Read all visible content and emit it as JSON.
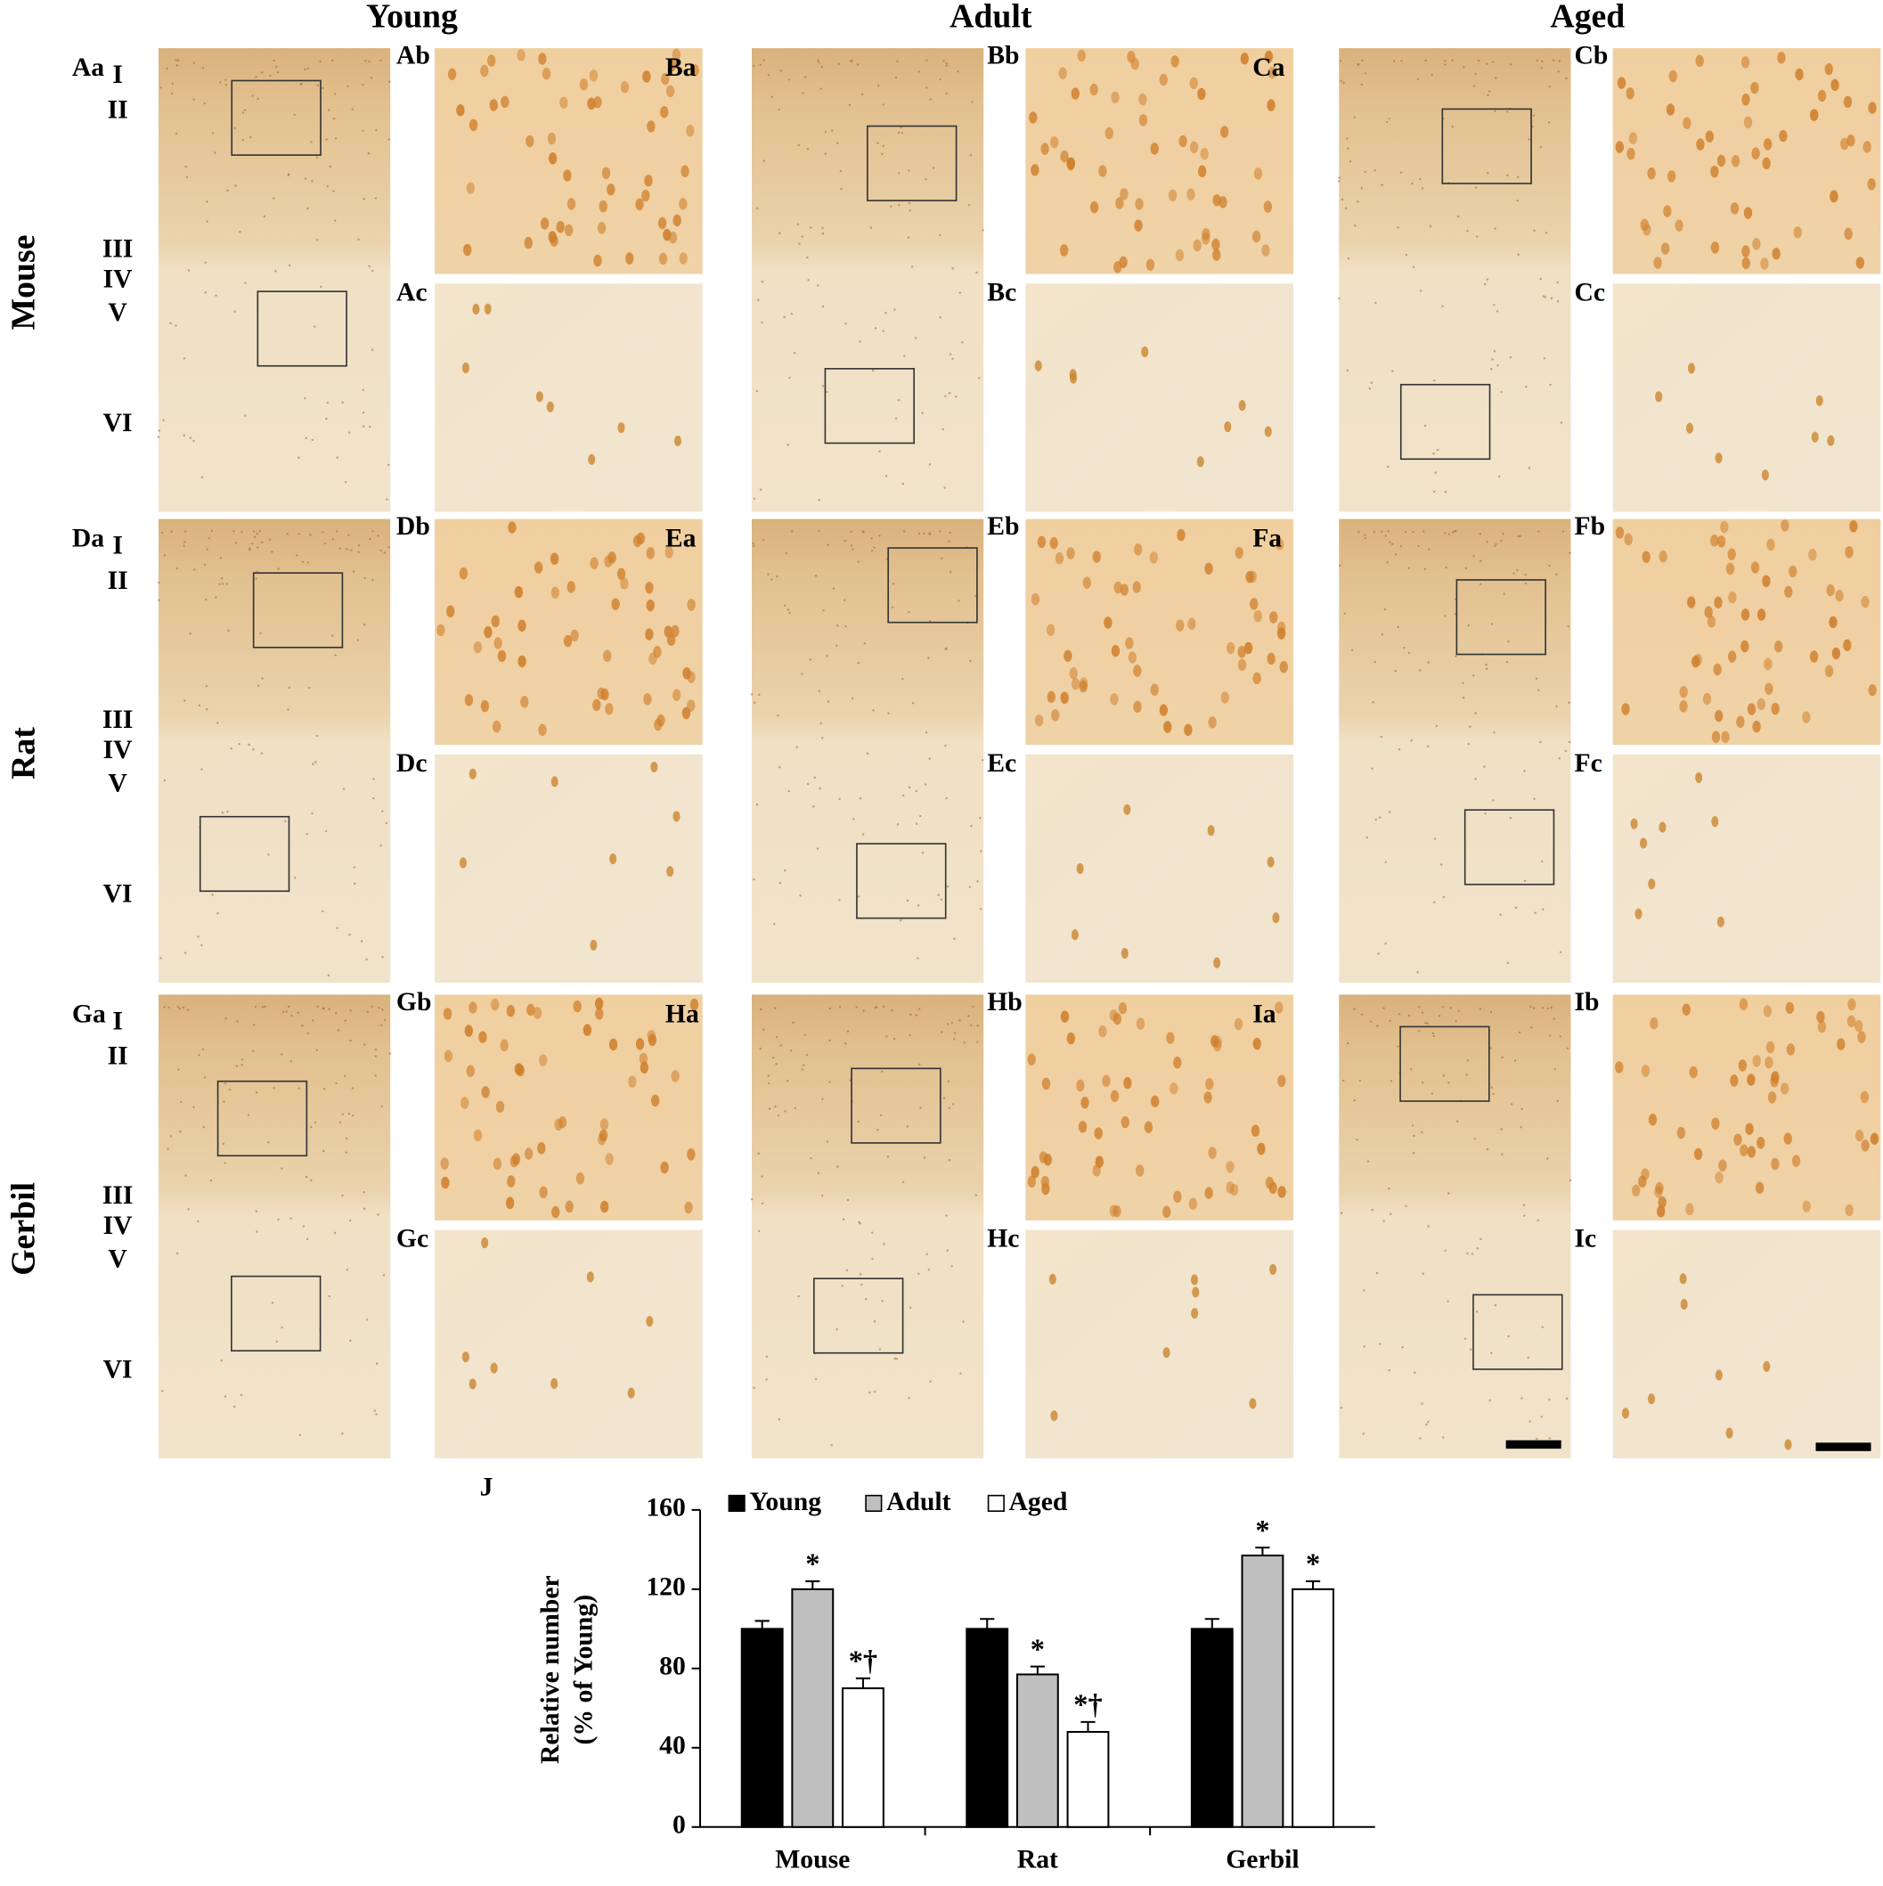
{
  "columns": [
    "Young",
    "Adult",
    "Aged"
  ],
  "rows": [
    "Mouse",
    "Rat",
    "Gerbil"
  ],
  "layers": [
    "I",
    "II",
    "III",
    "IV",
    "V",
    "VI"
  ],
  "panels": [
    [
      "Aa",
      "Ab",
      "Ac"
    ],
    [
      "Ba",
      "Bb",
      "Bc"
    ],
    [
      "Ca",
      "Cb",
      "Cc"
    ],
    [
      "Da",
      "Db",
      "Dc"
    ],
    [
      "Ea",
      "Eb",
      "Ec"
    ],
    [
      "Fa",
      "Fb",
      "Fc"
    ],
    [
      "Ga",
      "Gb",
      "Gc"
    ],
    [
      "Ha",
      "Hb",
      "Hc"
    ],
    [
      "Ia",
      "Ib",
      "Ic"
    ]
  ],
  "chart_data": {
    "type": "bar",
    "panel": "J",
    "ylabel": [
      "Relative number",
      "(% of Young)"
    ],
    "categories": [
      "Mouse",
      "Rat",
      "Gerbil"
    ],
    "series": [
      {
        "name": "Young",
        "color": "#000000",
        "values": [
          100,
          100,
          100
        ],
        "errors": [
          4,
          5,
          5
        ]
      },
      {
        "name": "Adult",
        "color": "#bfbfbf",
        "values": [
          120,
          77,
          137
        ],
        "errors": [
          4,
          4,
          4
        ],
        "annotations": [
          "*",
          "*",
          "*"
        ]
      },
      {
        "name": "Aged",
        "color": "#ffffff",
        "values": [
          70,
          48,
          120
        ],
        "errors": [
          5,
          5,
          4
        ],
        "annotations": [
          "*†",
          "*†",
          "*"
        ]
      }
    ],
    "ylim": [
      0,
      160
    ],
    "yticks": [
      0,
      40,
      80,
      120,
      160
    ],
    "legend": "top"
  }
}
